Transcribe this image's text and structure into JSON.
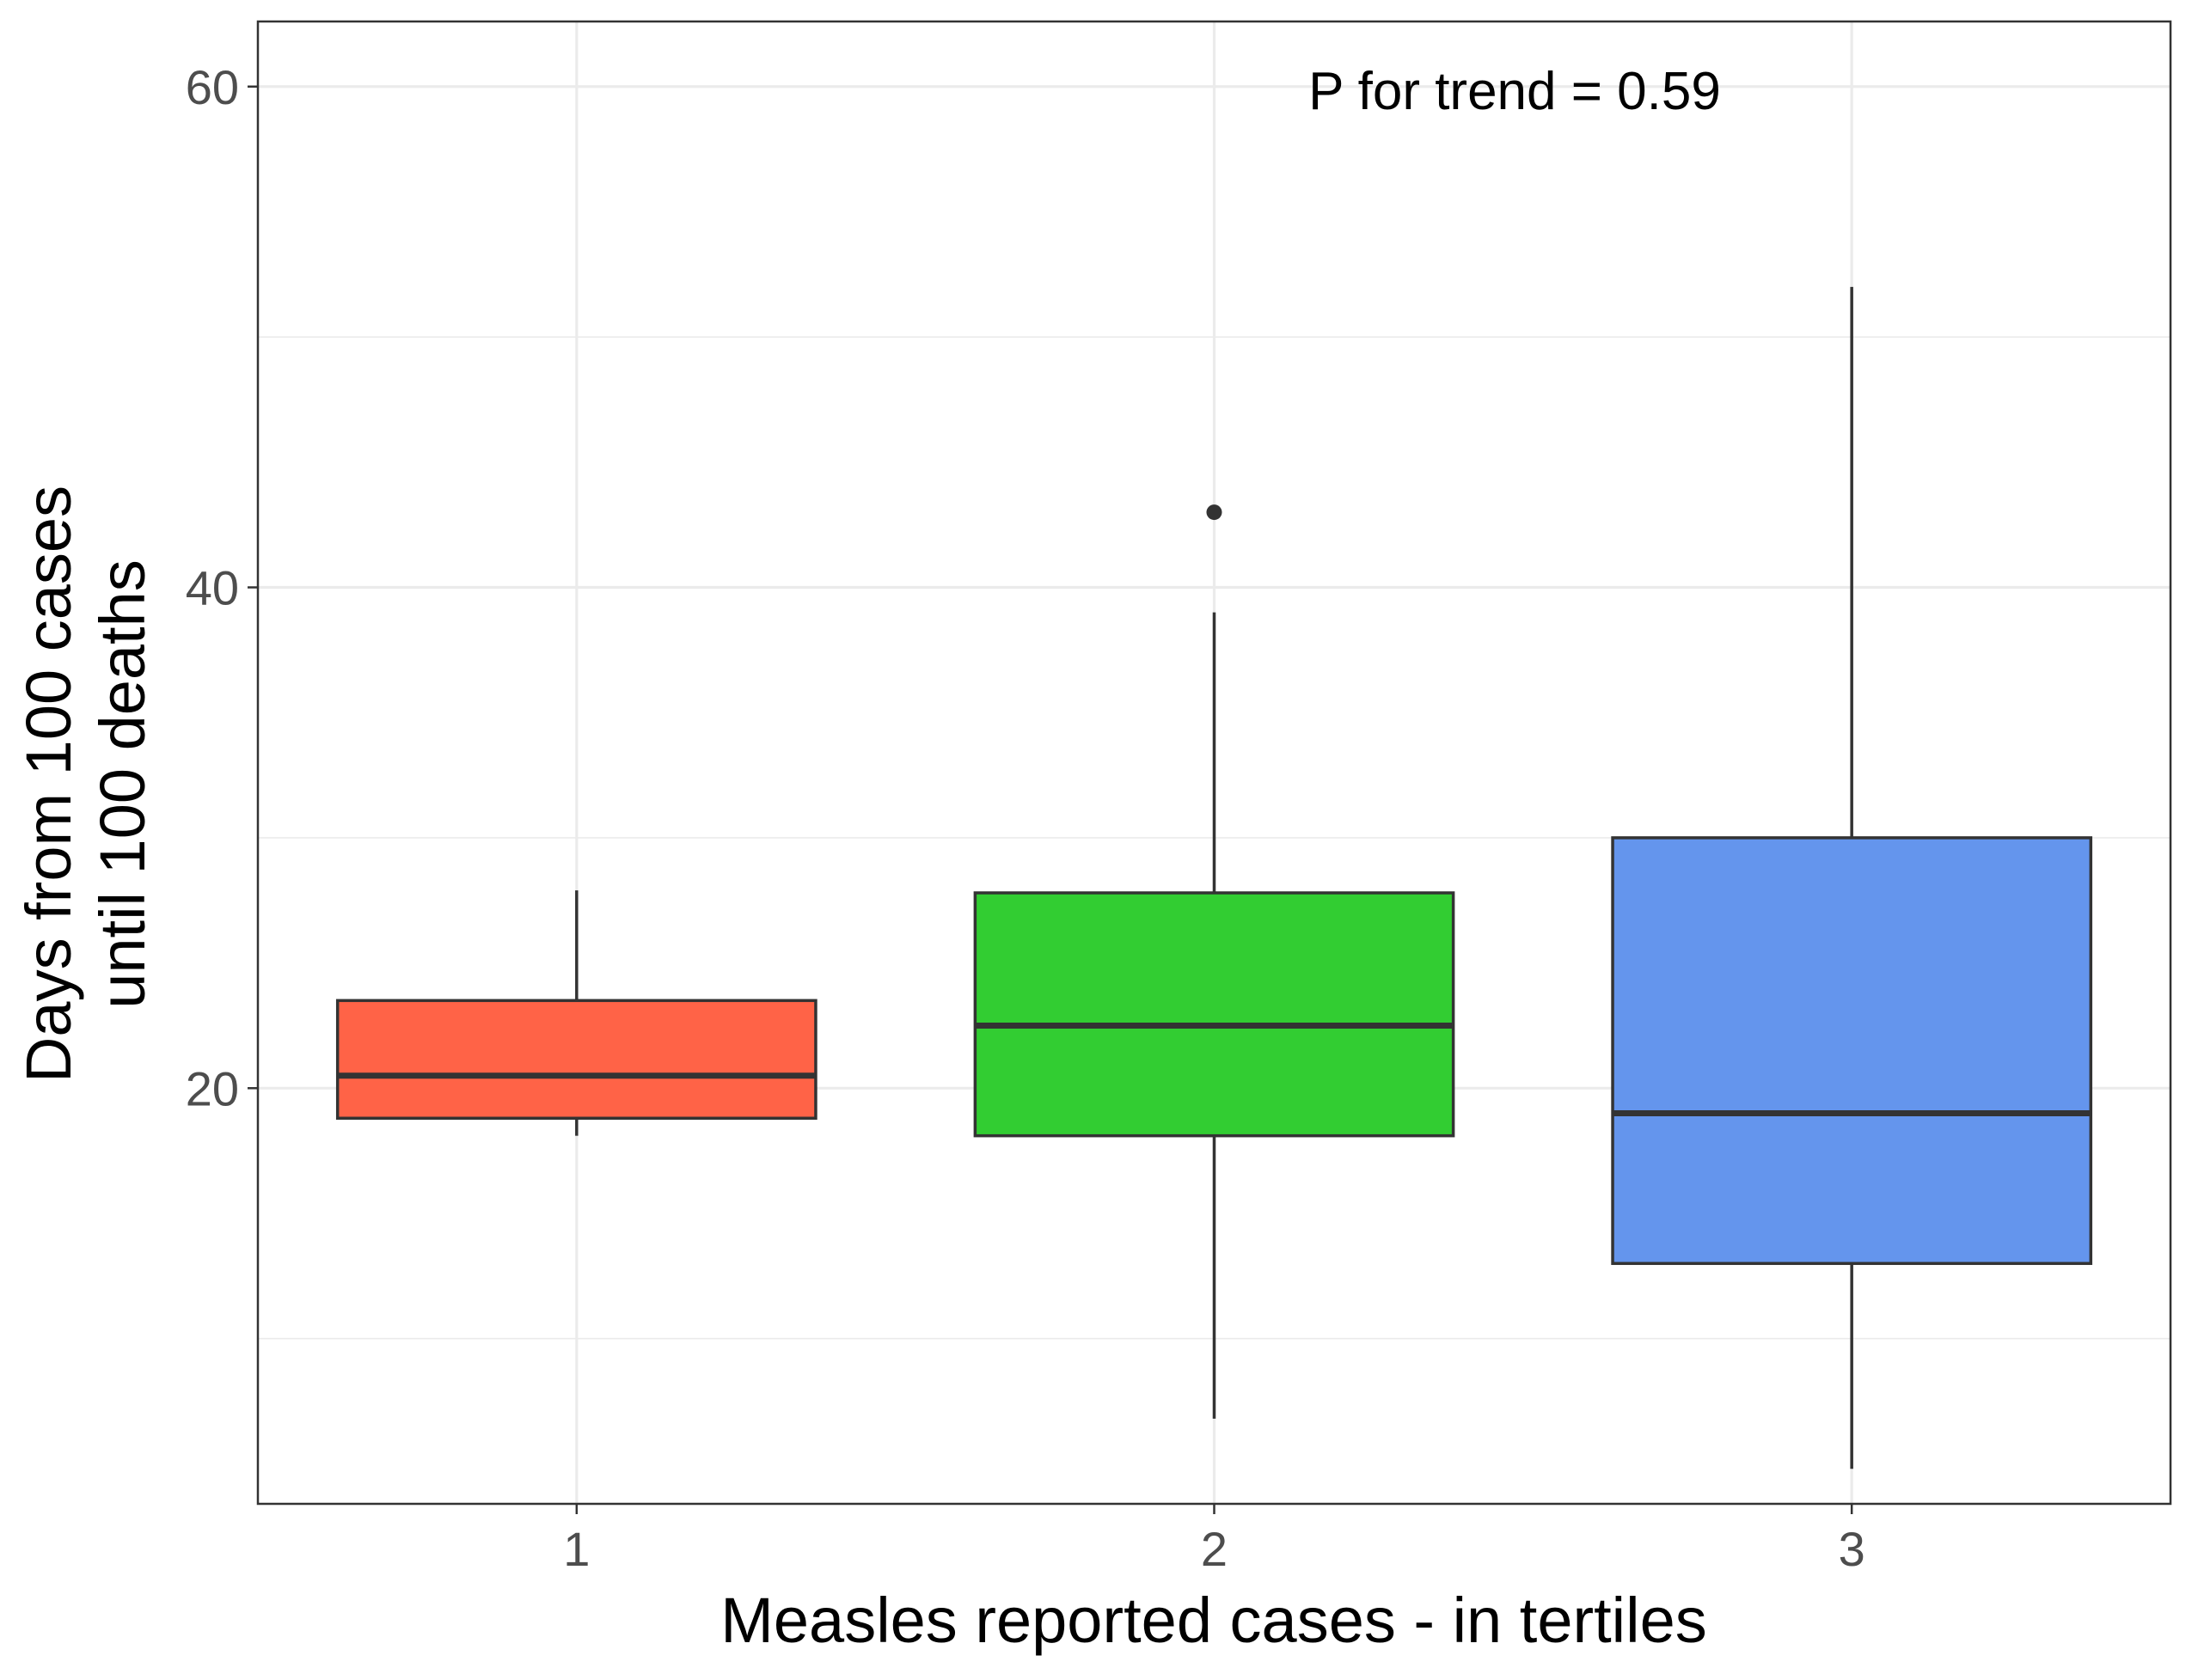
{
  "chart_data": {
    "type": "boxplot",
    "title": "",
    "xlabel": "Measles reported cases - in tertiles",
    "ylabel_lines": [
      "Days from 100 cases",
      "until 100 deaths"
    ],
    "annotation": "P for trend = 0.59",
    "ylim": [
      3.4,
      62.6
    ],
    "yticks": [
      20,
      40,
      60
    ],
    "categories": [
      "1",
      "2",
      "3"
    ],
    "boxes": [
      {
        "category": "1",
        "whisker_low": 18.1,
        "q1": 18.8,
        "median": 20.5,
        "q3": 23.5,
        "whisker_high": 27.9,
        "outliers": [],
        "fill": "#FF6347"
      },
      {
        "category": "2",
        "whisker_low": 6.8,
        "q1": 18.1,
        "median": 22.5,
        "q3": 27.8,
        "whisker_high": 39.0,
        "outliers": [
          43.0
        ],
        "fill": "#32CD32"
      },
      {
        "category": "3",
        "whisker_low": 4.8,
        "q1": 13.0,
        "median": 19.0,
        "q3": 30.0,
        "whisker_high": 52.0,
        "outliers": [],
        "fill": "#6495ED"
      }
    ],
    "grid": true,
    "theme": "white background, light grey gridlines, dark panel border",
    "legend": "none"
  }
}
